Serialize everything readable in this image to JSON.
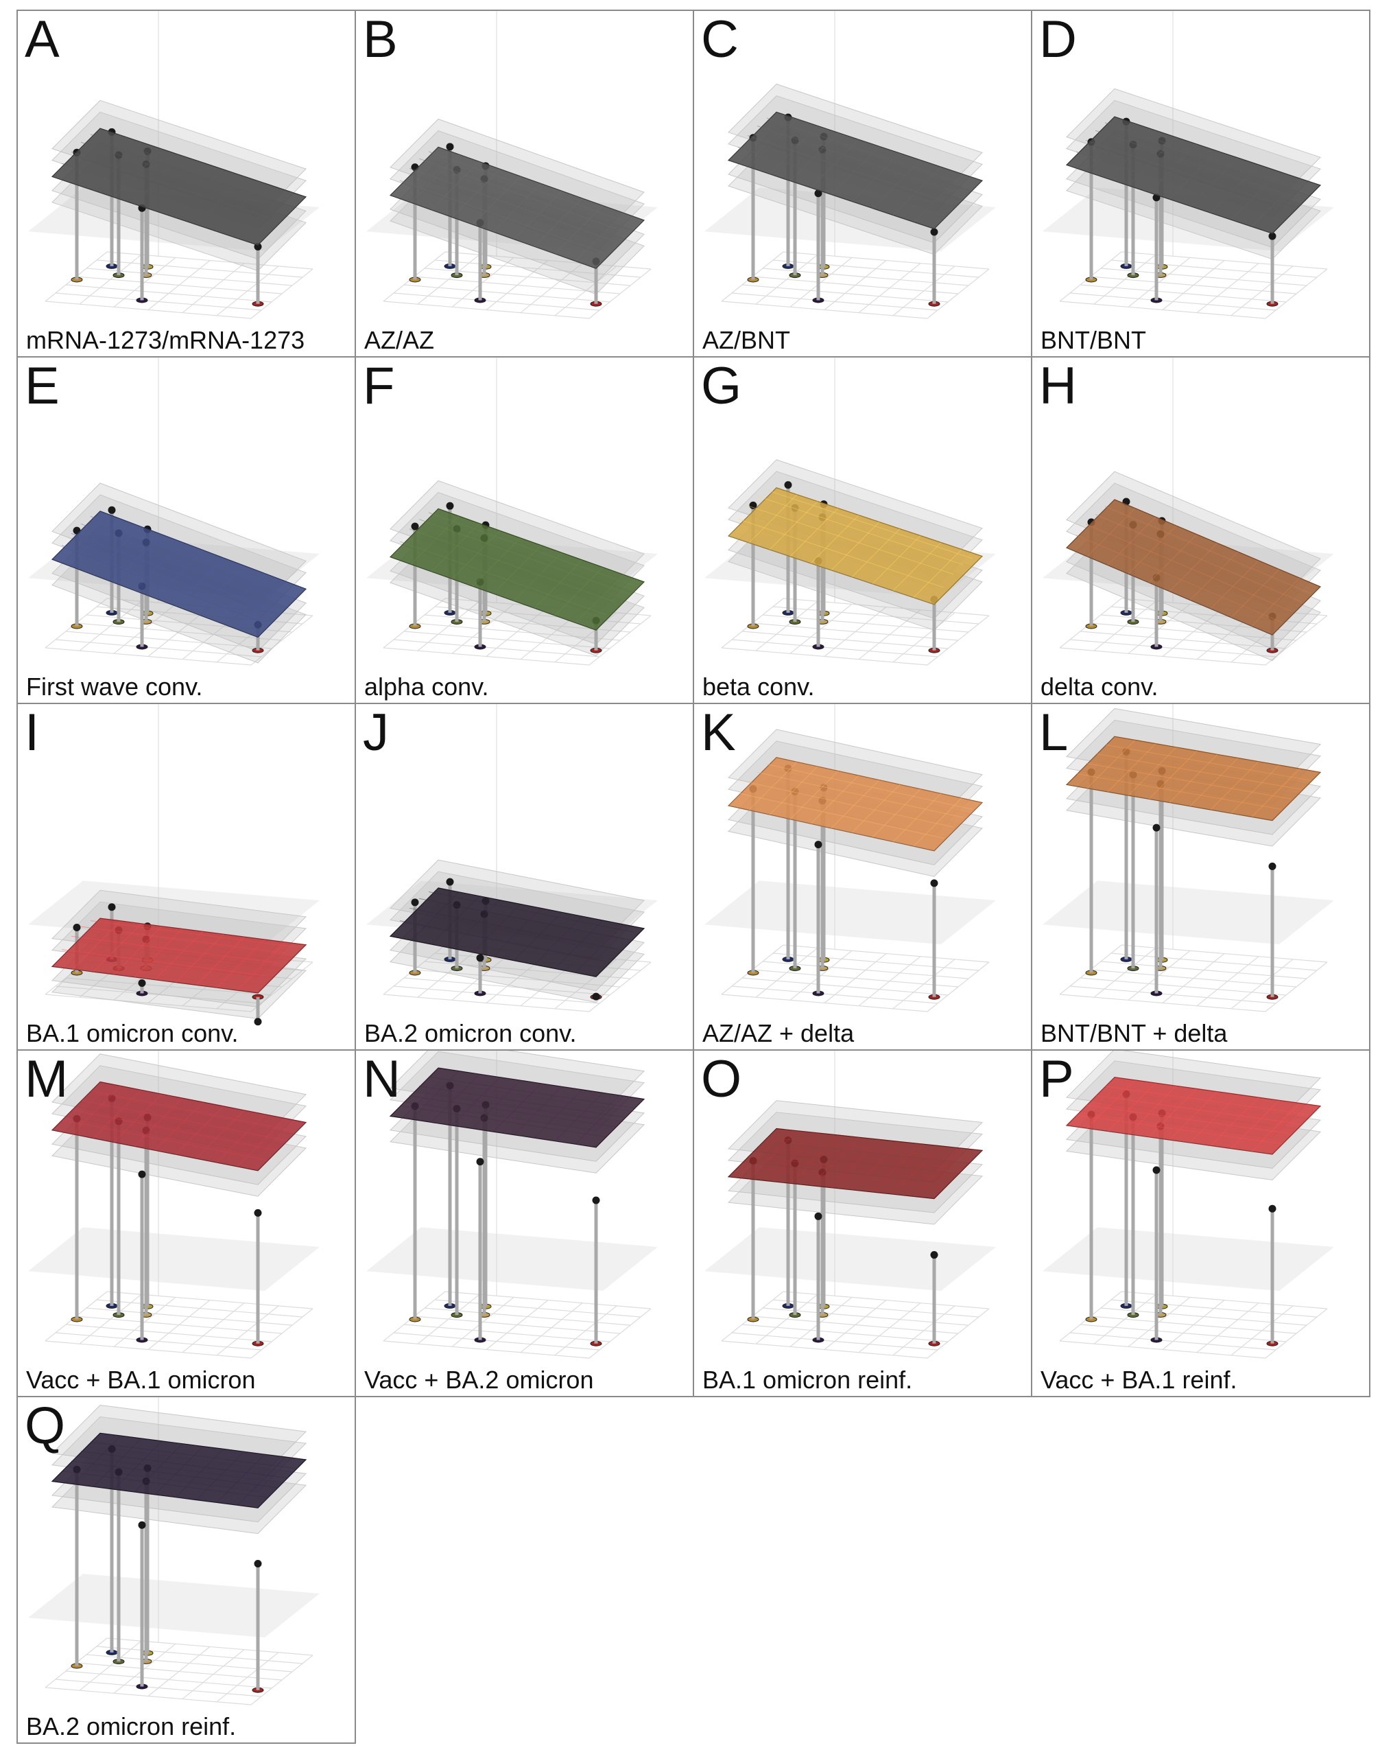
{
  "panels": [
    {
      "letter": "A",
      "caption": "mRNA-1273/mRNA-1273",
      "surface_color": "#4a4a4a",
      "surface_level": 0.55,
      "surface_slope": 0.22,
      "curvature": 0.05
    },
    {
      "letter": "B",
      "caption": "AZ/AZ",
      "surface_color": "#555555",
      "surface_level": 0.48,
      "surface_slope": 0.24,
      "curvature": 0.07
    },
    {
      "letter": "C",
      "caption": "AZ/BNT",
      "surface_color": "#505050",
      "surface_level": 0.62,
      "surface_slope": 0.22,
      "curvature": 0.05
    },
    {
      "letter": "D",
      "caption": "BNT/BNT",
      "surface_color": "#4c4c4c",
      "surface_level": 0.6,
      "surface_slope": 0.22,
      "curvature": 0.05
    },
    {
      "letter": "E",
      "caption": "First wave conv.",
      "surface_color": "#3c4a80",
      "surface_level": 0.4,
      "surface_slope": 0.26,
      "curvature": 0.06
    },
    {
      "letter": "F",
      "caption": "alpha conv.",
      "surface_color": "#4f6b35",
      "surface_level": 0.42,
      "surface_slope": 0.24,
      "curvature": 0.08
    },
    {
      "letter": "G",
      "caption": "beta conv.",
      "surface_color": "#d4a748",
      "surface_level": 0.52,
      "surface_slope": 0.22,
      "curvature": 0.1
    },
    {
      "letter": "H",
      "caption": "delta conv.",
      "surface_color": "#a0623a",
      "surface_level": 0.44,
      "surface_slope": 0.3,
      "curvature": 0.04
    },
    {
      "letter": "I",
      "caption": "BA.1 omicron conv.",
      "surface_color": "#c0393b",
      "surface_level": 0.16,
      "surface_slope": 0.04,
      "curvature": 0.1
    },
    {
      "letter": "J",
      "caption": "BA.2 omicron conv.",
      "surface_color": "#2a2030",
      "surface_level": 0.28,
      "surface_slope": 0.1,
      "curvature": 0.08
    },
    {
      "letter": "K",
      "caption": "AZ/AZ + delta",
      "surface_color": "#d98b50",
      "surface_level": 0.82,
      "surface_slope": 0.12,
      "curvature": 0.04
    },
    {
      "letter": "L",
      "caption": "BNT/BNT + delta",
      "surface_color": "#c47a40",
      "surface_level": 0.9,
      "surface_slope": 0.08,
      "curvature": 0.02
    },
    {
      "letter": "M",
      "caption": "Vacc + BA.1 omicron",
      "surface_color": "#a83038",
      "surface_level": 0.9,
      "surface_slope": 0.1,
      "curvature": 0.01
    },
    {
      "letter": "N",
      "caption": "Vacc + BA.2 omicron",
      "surface_color": "#3a2438",
      "surface_level": 0.96,
      "surface_slope": 0.06,
      "curvature": 0.01
    },
    {
      "letter": "O",
      "caption": "BA.1 omicron reinf.",
      "surface_color": "#8a2a2a",
      "surface_level": 0.7,
      "surface_slope": 0.02,
      "curvature": 0.01
    },
    {
      "letter": "P",
      "caption": "Vacc + BA.1 reinf.",
      "surface_color": "#d04040",
      "surface_level": 0.92,
      "surface_slope": 0.05,
      "curvature": 0.01
    },
    {
      "letter": "Q",
      "caption": "BA.2 omicron reinf.",
      "surface_color": "#2a2036",
      "surface_level": 0.88,
      "surface_slope": 0.04,
      "curvature": 0.01
    }
  ],
  "antigens": [
    {
      "color": "#b88a2a",
      "height": 0.45
    },
    {
      "color": "#1e2a66",
      "height": 0.48
    },
    {
      "color": "#5a6a30",
      "height": 0.42
    },
    {
      "color": "#b8a030",
      "height": 0.4
    },
    {
      "color": "#c0a050",
      "height": 0.38
    },
    {
      "color": "#2a1840",
      "height": 0.3
    },
    {
      "color": "#a82020",
      "height": 0.15
    }
  ]
}
